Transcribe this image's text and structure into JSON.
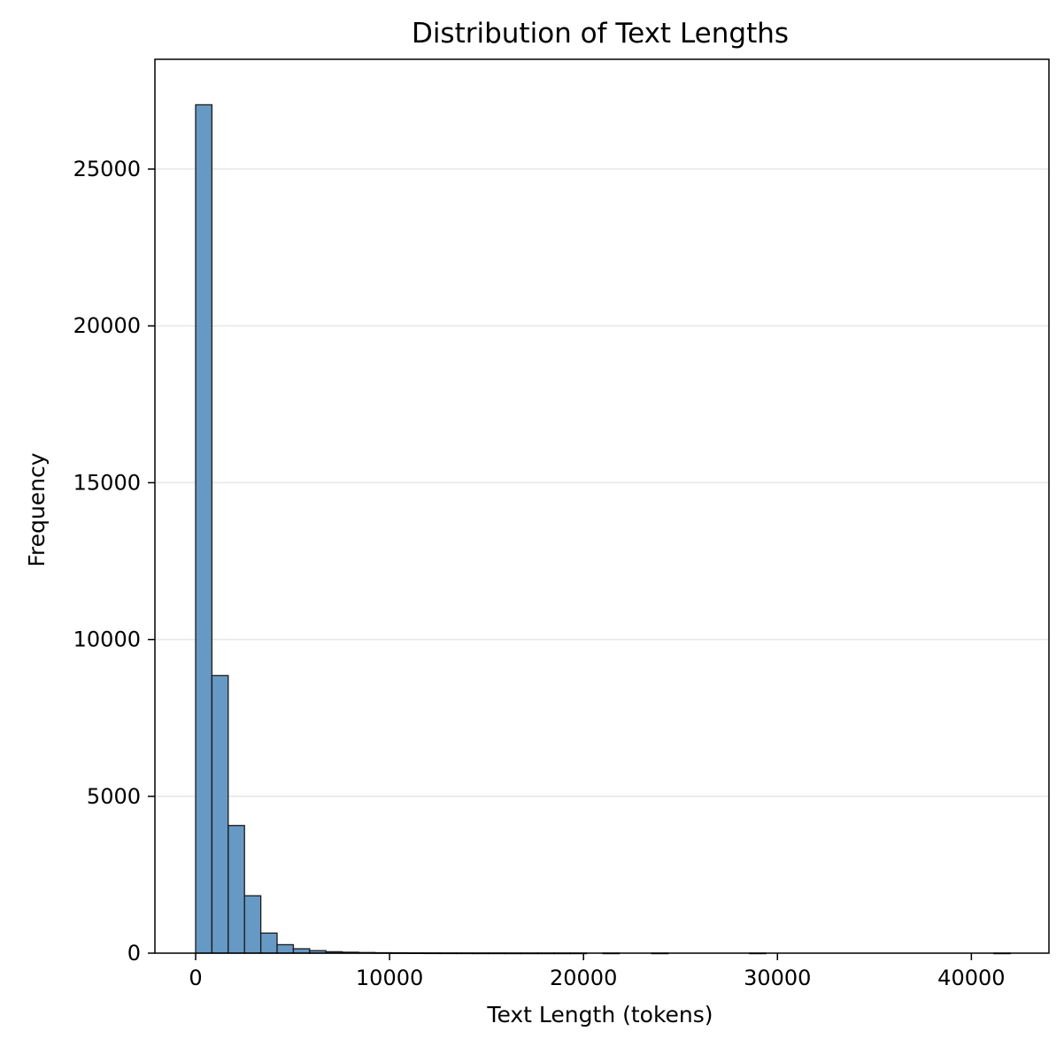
{
  "chart_data": {
    "type": "bar",
    "title": "Distribution of Text Lengths",
    "xlabel": "Text Length (tokens)",
    "ylabel": "Frequency",
    "xlim": [
      -2100,
      44000
    ],
    "ylim": [
      0,
      28500
    ],
    "xticks": [
      0,
      10000,
      20000,
      30000,
      40000
    ],
    "yticks": [
      0,
      5000,
      10000,
      15000,
      20000,
      25000
    ],
    "grid": "horizontal",
    "bin_width": 840,
    "bin_start": 0,
    "values": [
      27050,
      8850,
      4070,
      1830,
      640,
      270,
      140,
      80,
      45,
      30,
      20,
      14,
      10,
      7,
      5,
      4,
      3,
      2,
      2,
      1,
      1,
      1,
      1,
      1,
      0,
      1,
      0,
      0,
      1,
      0,
      0,
      0,
      0,
      0,
      1,
      0,
      0,
      0,
      0,
      0,
      0,
      0,
      0,
      0,
      0,
      0,
      0,
      0,
      0,
      1
    ],
    "bar_color": "#6699c4",
    "edge_color": "#1a1a1a",
    "grid_color": "#e6e6e6"
  }
}
